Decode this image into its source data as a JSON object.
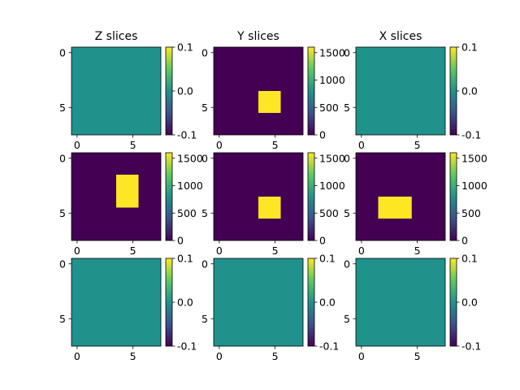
{
  "chart_data": {
    "type": "heatmap",
    "colormap": "viridis",
    "colors": {
      "low": "#440154",
      "mid": "#21918c",
      "high": "#fde725"
    },
    "grid_shape": [
      3,
      3
    ],
    "column_titles": [
      "Z slices",
      "Y slices",
      "X slices"
    ],
    "image_size": [
      8,
      8
    ],
    "x_ticks": [
      "0",
      "5"
    ],
    "y_ticks": [
      "0",
      "5"
    ],
    "panels": [
      {
        "title": "Z slices",
        "cbar": [
          "0.1",
          "0.0",
          "-0.1"
        ],
        "vmin": -0.1,
        "vmax": 0.1,
        "background": 0
      },
      {
        "title": "Y slices",
        "cbar": [
          "1500",
          "1000",
          "500",
          "0"
        ],
        "vmin": 0,
        "vmax": 1600,
        "background": 0,
        "hot_rect": {
          "rows": [
            3.5,
            5.5
          ],
          "cols": [
            3.5,
            5.5
          ],
          "value": 1600
        }
      },
      {
        "title": "X slices",
        "cbar": [
          "0.1",
          "0.0",
          "-0.1"
        ],
        "vmin": -0.1,
        "vmax": 0.1,
        "background": 0
      },
      {
        "cbar": [
          "1500",
          "1000",
          "500",
          "0"
        ],
        "vmin": 0,
        "vmax": 1600,
        "background": 0,
        "hot_rect": {
          "rows": [
            1.5,
            4.5
          ],
          "cols": [
            3.5,
            5.5
          ],
          "value": 1600
        }
      },
      {
        "cbar": [
          "1500",
          "1000",
          "500",
          "0"
        ],
        "vmin": 0,
        "vmax": 1600,
        "background": 0,
        "hot_rect": {
          "rows": [
            3.5,
            5.5
          ],
          "cols": [
            3.5,
            5.5
          ],
          "value": 1600
        }
      },
      {
        "cbar": [
          "1500",
          "1000",
          "500",
          "0"
        ],
        "vmin": 0,
        "vmax": 1600,
        "background": 0,
        "hot_rect": {
          "rows": [
            3.5,
            5.5
          ],
          "cols": [
            1.5,
            4.5
          ],
          "value": 1600
        }
      },
      {
        "cbar": [
          "0.1",
          "0.0",
          "-0.1"
        ],
        "vmin": -0.1,
        "vmax": 0.1,
        "background": 0
      },
      {
        "cbar": [
          "0.1",
          "0.0",
          "-0.1"
        ],
        "vmin": -0.1,
        "vmax": 0.1,
        "background": 0
      },
      {
        "cbar": [
          "0.1",
          "0.0",
          "-0.1"
        ],
        "vmin": -0.1,
        "vmax": 0.1,
        "background": 0
      }
    ]
  }
}
